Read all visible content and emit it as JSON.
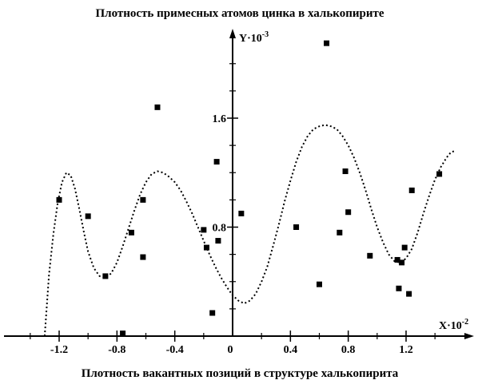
{
  "chart_data": {
    "type": "scatter",
    "title": "Плотность примесных атомов цинка в халькопирите",
    "xlabel": "Плотность вакантных позиций в структуре халькопирита",
    "x_axis_name": "X",
    "y_axis_name": "Y",
    "x_multiplier": "·10",
    "x_exponent": "-2",
    "y_multiplier": "·10",
    "y_exponent": "-3",
    "origin_label": "0",
    "xlim": [
      -1.5,
      1.6
    ],
    "ylim": [
      0,
      2.1
    ],
    "x_ticks": [
      -1.2,
      -0.8,
      -0.4,
      0.4,
      0.8,
      1.2
    ],
    "x_tick_labels": [
      "-1.2",
      "-0.8",
      "-0.4",
      "0.4",
      "0.8",
      "1.2"
    ],
    "x_minor_ticks": [
      -1.4,
      -1.0,
      -0.6,
      -0.2,
      0.2,
      0.6,
      1.0,
      1.4
    ],
    "y_ticks": [
      0.8,
      1.6
    ],
    "y_tick_labels": [
      "0.8",
      "1.6"
    ],
    "y_minor_ticks": [
      0.2,
      0.4,
      0.6,
      1.0,
      1.2,
      1.4,
      1.8,
      2.0
    ],
    "grid": false,
    "series": [
      {
        "style": "markers-square",
        "x": [
          -1.2,
          -1.0,
          -0.88,
          -0.76,
          -0.7,
          -0.62,
          -0.62,
          -0.52,
          -0.2,
          -0.18,
          -0.14,
          -0.11,
          -0.1,
          0.06,
          0.44,
          0.6,
          0.65,
          0.74,
          0.78,
          0.8,
          0.95,
          1.14,
          1.15,
          1.17,
          1.19,
          1.22,
          1.24,
          1.43
        ],
        "y": [
          1.0,
          0.88,
          0.44,
          0.02,
          0.76,
          0.58,
          1.0,
          1.68,
          0.78,
          0.65,
          0.17,
          1.28,
          0.7,
          0.9,
          0.8,
          0.38,
          2.15,
          0.76,
          1.21,
          0.91,
          0.59,
          0.56,
          0.35,
          0.54,
          0.65,
          0.31,
          1.07,
          1.19
        ]
      },
      {
        "style": "dotted-line",
        "x": [
          -1.3,
          -1.27,
          -1.24,
          -1.21,
          -1.18,
          -1.15,
          -1.12,
          -1.09,
          -1.06,
          -1.03,
          -1.0,
          -0.96,
          -0.92,
          -0.88,
          -0.84,
          -0.8,
          -0.76,
          -0.72,
          -0.68,
          -0.64,
          -0.6,
          -0.56,
          -0.52,
          -0.48,
          -0.44,
          -0.4,
          -0.36,
          -0.32,
          -0.28,
          -0.24,
          -0.2,
          -0.16,
          -0.12,
          -0.08,
          -0.04,
          0.0,
          0.04,
          0.08,
          0.12,
          0.16,
          0.2,
          0.24,
          0.28,
          0.32,
          0.36,
          0.4,
          0.44,
          0.48,
          0.52,
          0.56,
          0.6,
          0.64,
          0.68,
          0.72,
          0.76,
          0.8,
          0.84,
          0.88,
          0.92,
          0.96,
          1.0,
          1.04,
          1.08,
          1.12,
          1.16,
          1.2,
          1.24,
          1.28,
          1.32,
          1.36,
          1.4,
          1.44,
          1.48,
          1.51,
          1.54
        ],
        "y": [
          0.0,
          0.45,
          0.75,
          0.98,
          1.13,
          1.2,
          1.18,
          1.08,
          0.93,
          0.77,
          0.62,
          0.5,
          0.44,
          0.43,
          0.46,
          0.54,
          0.66,
          0.79,
          0.92,
          1.04,
          1.13,
          1.19,
          1.21,
          1.2,
          1.17,
          1.13,
          1.07,
          0.99,
          0.9,
          0.8,
          0.7,
          0.6,
          0.51,
          0.43,
          0.36,
          0.3,
          0.26,
          0.24,
          0.26,
          0.31,
          0.4,
          0.51,
          0.66,
          0.82,
          0.99,
          1.14,
          1.28,
          1.39,
          1.47,
          1.52,
          1.54,
          1.55,
          1.54,
          1.52,
          1.47,
          1.4,
          1.31,
          1.2,
          1.07,
          0.93,
          0.8,
          0.69,
          0.6,
          0.55,
          0.54,
          0.57,
          0.64,
          0.76,
          0.9,
          1.03,
          1.15,
          1.24,
          1.31,
          1.35,
          1.36
        ]
      }
    ]
  }
}
